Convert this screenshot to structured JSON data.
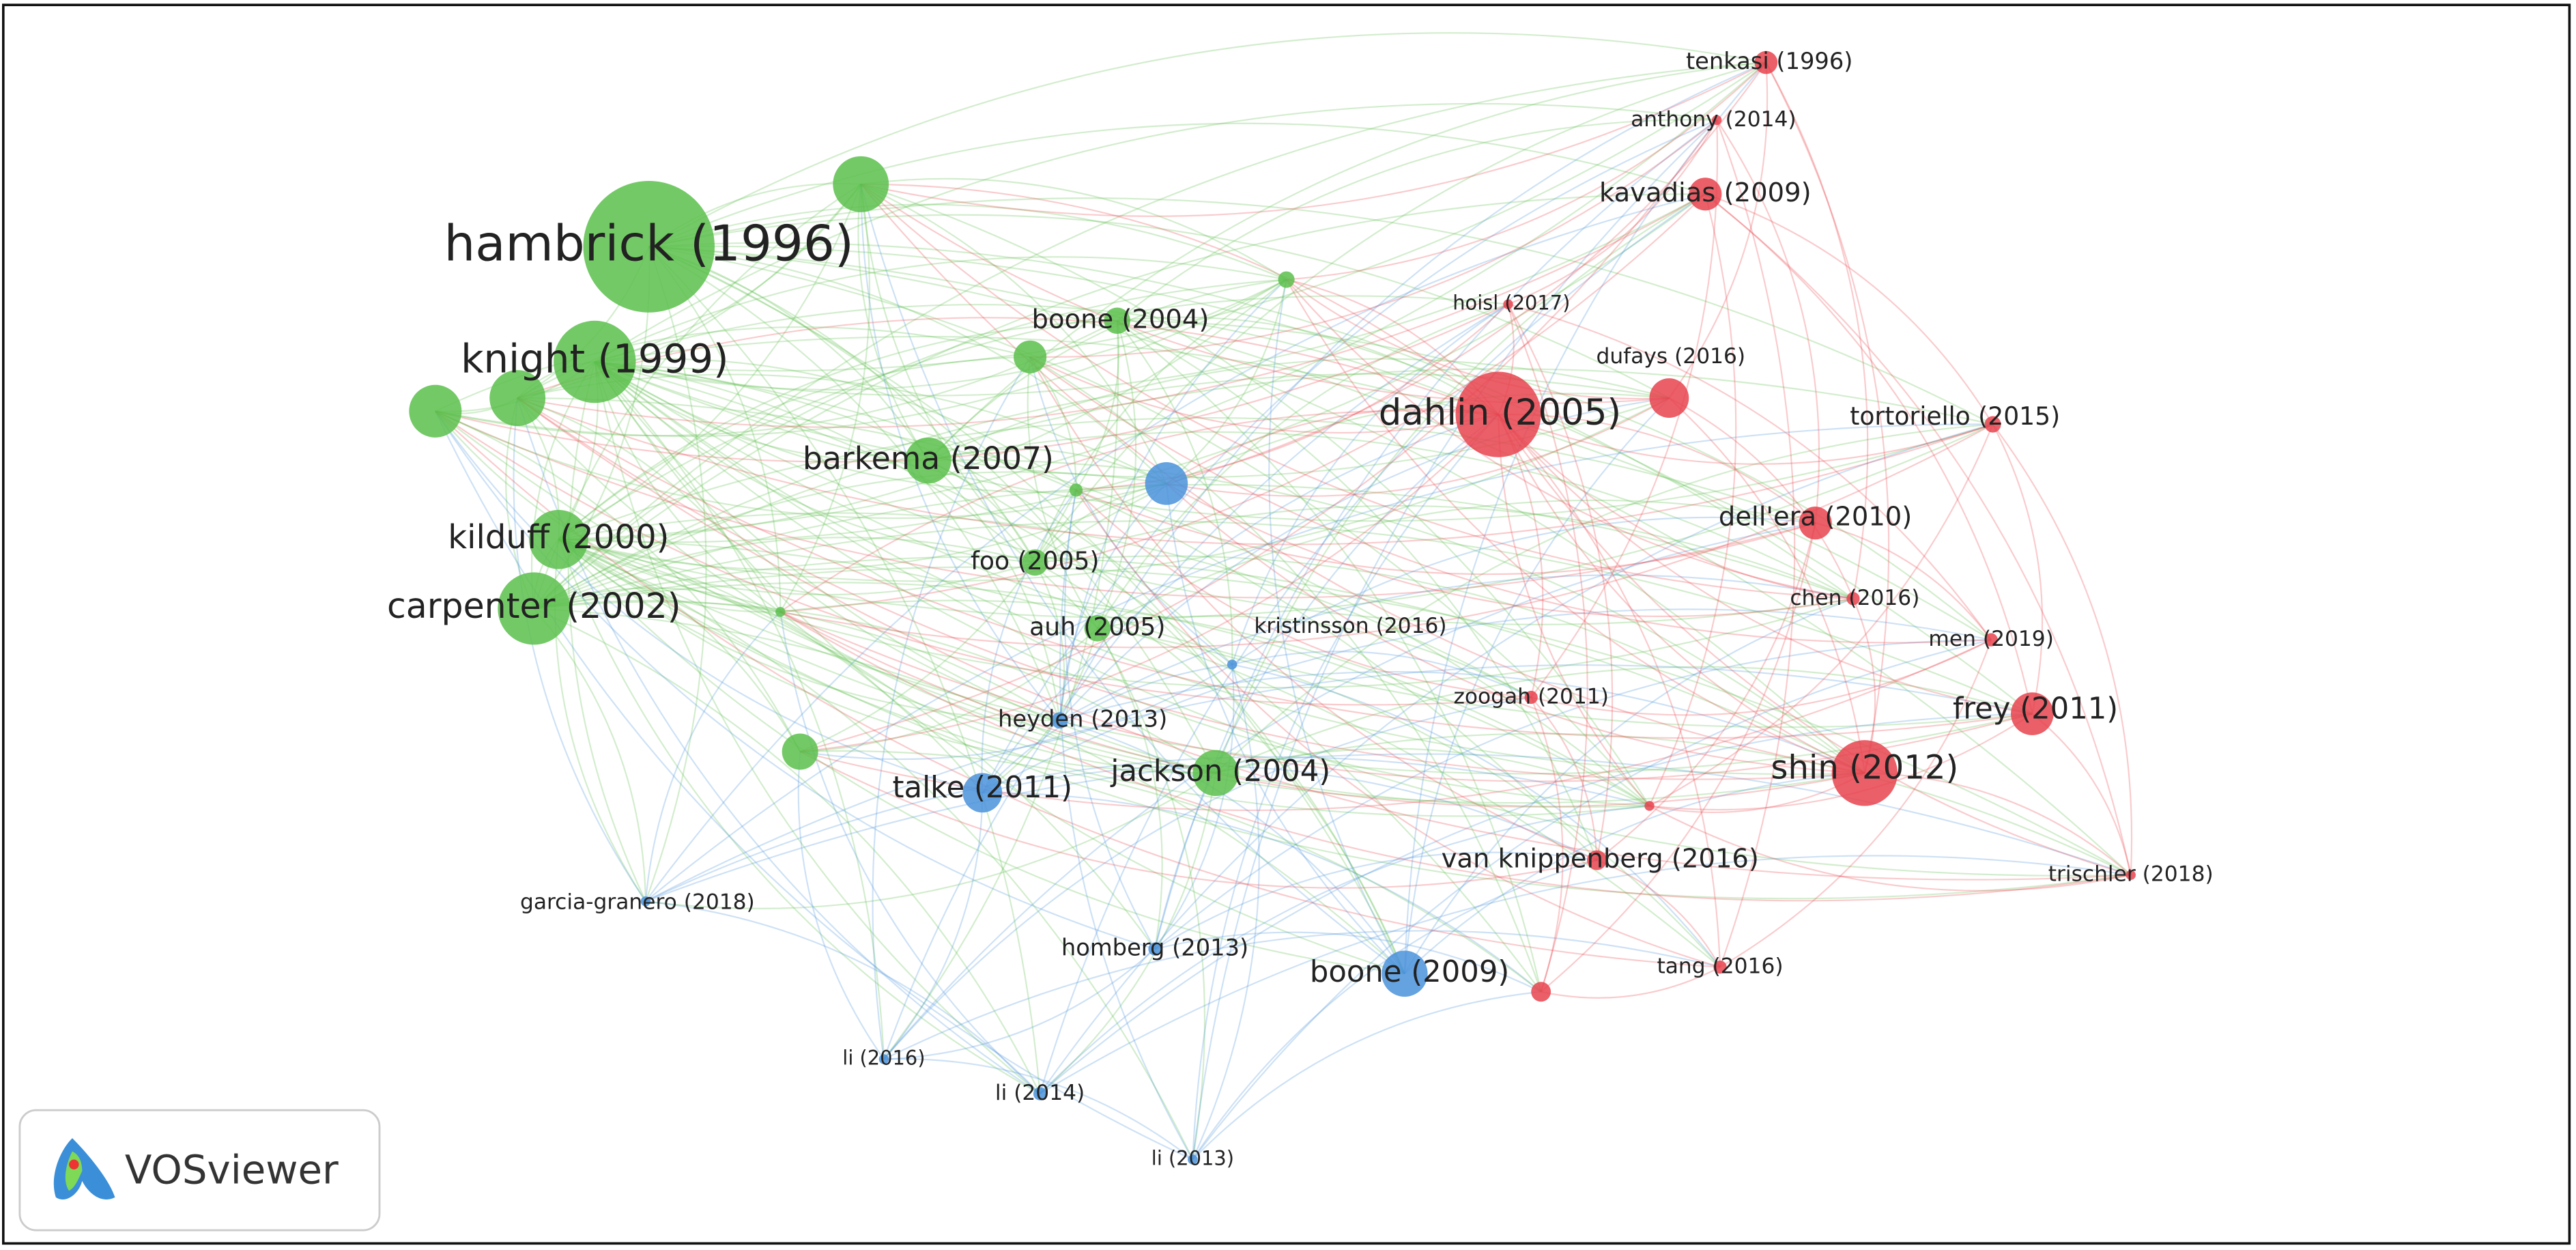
{
  "nodes": [
    "hambrick (1996)",
    "knight (1999)",
    "barkema (2007)",
    "kilduff (2000)",
    "carpenter (2002)",
    "boone (2004)",
    "foo (2005)",
    "auh (2005)",
    "jackson (2004)",
    "talke (2011)",
    "heyden (2013)",
    "kristinsson (2016)",
    "garcia-granero (2018)",
    "homberg (2013)",
    "boone (2009)",
    "li (2016)",
    "li (2014)",
    "li (2013)",
    "tenkasi (1996)",
    "anthony (2014)",
    "kavadias (2009)",
    "hoisl (2017)",
    "dufays (2016)",
    "dahlin (2005)",
    "tortoriello (2015)",
    "dell'era (2010)",
    "chen (2016)",
    "men (2019)",
    "frey (2011)",
    "zoogah (2011)",
    "shin (2012)",
    "van knippenberg (2016)",
    "trischler (2018)",
    "tang (2016)"
  ],
  "logo": "VOSviewer"
}
